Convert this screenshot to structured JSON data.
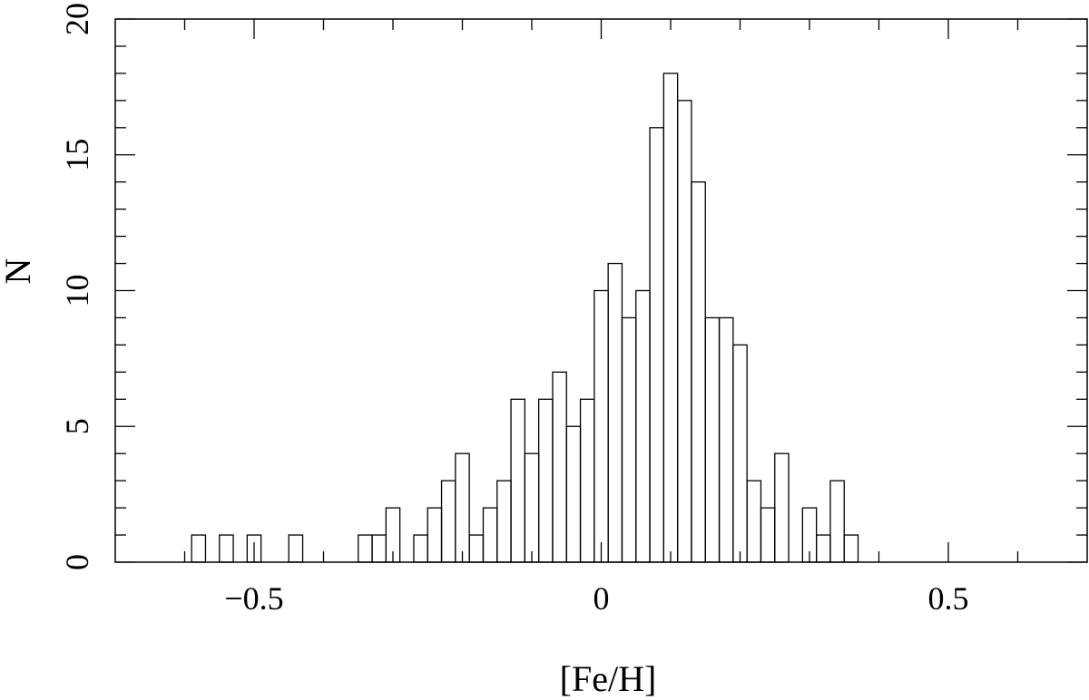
{
  "chart_data": {
    "type": "bar",
    "subtype": "histogram",
    "xlabel": "[Fe/H]",
    "ylabel": "N",
    "xlim": [
      -0.7,
      0.7
    ],
    "ylim": [
      0,
      20
    ],
    "grid": false,
    "bin_width": 0.02,
    "x_ticks": [
      {
        "value": -0.5,
        "label": "−0.5"
      },
      {
        "value": 0,
        "label": "0"
      },
      {
        "value": 0.5,
        "label": "0.5"
      }
    ],
    "y_ticks": [
      {
        "value": 0,
        "label": "0"
      },
      {
        "value": 5,
        "label": "5"
      },
      {
        "value": 10,
        "label": "10"
      },
      {
        "value": 15,
        "label": "15"
      },
      {
        "value": 20,
        "label": "20"
      }
    ],
    "bins": [
      {
        "x0": -0.59,
        "x1": -0.57,
        "count": 1
      },
      {
        "x0": -0.55,
        "x1": -0.53,
        "count": 1
      },
      {
        "x0": -0.51,
        "x1": -0.49,
        "count": 1
      },
      {
        "x0": -0.45,
        "x1": -0.43,
        "count": 1
      },
      {
        "x0": -0.35,
        "x1": -0.33,
        "count": 1
      },
      {
        "x0": -0.33,
        "x1": -0.31,
        "count": 1
      },
      {
        "x0": -0.31,
        "x1": -0.29,
        "count": 2
      },
      {
        "x0": -0.27,
        "x1": -0.25,
        "count": 1
      },
      {
        "x0": -0.25,
        "x1": -0.23,
        "count": 2
      },
      {
        "x0": -0.23,
        "x1": -0.21,
        "count": 3
      },
      {
        "x0": -0.21,
        "x1": -0.19,
        "count": 4
      },
      {
        "x0": -0.19,
        "x1": -0.17,
        "count": 1
      },
      {
        "x0": -0.17,
        "x1": -0.15,
        "count": 2
      },
      {
        "x0": -0.15,
        "x1": -0.13,
        "count": 3
      },
      {
        "x0": -0.13,
        "x1": -0.11,
        "count": 6
      },
      {
        "x0": -0.11,
        "x1": -0.09,
        "count": 4
      },
      {
        "x0": -0.09,
        "x1": -0.07,
        "count": 6
      },
      {
        "x0": -0.07,
        "x1": -0.05,
        "count": 7
      },
      {
        "x0": -0.05,
        "x1": -0.03,
        "count": 5
      },
      {
        "x0": -0.03,
        "x1": -0.01,
        "count": 6
      },
      {
        "x0": -0.01,
        "x1": 0.01,
        "count": 10
      },
      {
        "x0": 0.01,
        "x1": 0.03,
        "count": 11
      },
      {
        "x0": 0.03,
        "x1": 0.05,
        "count": 9
      },
      {
        "x0": 0.05,
        "x1": 0.07,
        "count": 10
      },
      {
        "x0": 0.07,
        "x1": 0.09,
        "count": 16
      },
      {
        "x0": 0.09,
        "x1": 0.11,
        "count": 18
      },
      {
        "x0": 0.11,
        "x1": 0.13,
        "count": 17
      },
      {
        "x0": 0.13,
        "x1": 0.15,
        "count": 14
      },
      {
        "x0": 0.15,
        "x1": 0.17,
        "count": 9
      },
      {
        "x0": 0.17,
        "x1": 0.19,
        "count": 9
      },
      {
        "x0": 0.19,
        "x1": 0.21,
        "count": 8
      },
      {
        "x0": 0.21,
        "x1": 0.23,
        "count": 3
      },
      {
        "x0": 0.23,
        "x1": 0.25,
        "count": 2
      },
      {
        "x0": 0.25,
        "x1": 0.27,
        "count": 4
      },
      {
        "x0": 0.27,
        "x1": 0.29,
        "count": 0
      },
      {
        "x0": 0.29,
        "x1": 0.31,
        "count": 2
      },
      {
        "x0": 0.31,
        "x1": 0.33,
        "count": 1
      },
      {
        "x0": 0.33,
        "x1": 0.35,
        "count": 3
      },
      {
        "x0": 0.35,
        "x1": 0.37,
        "count": 1
      }
    ]
  }
}
